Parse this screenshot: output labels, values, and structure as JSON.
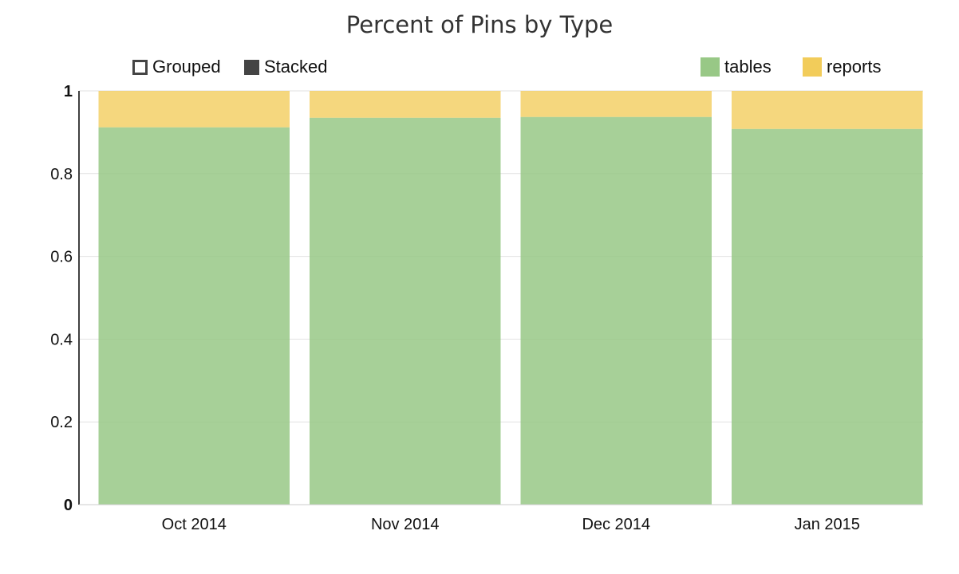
{
  "chart_data": {
    "type": "bar",
    "stacked": true,
    "title": "Percent of Pins by Type",
    "categories": [
      "Oct 2014",
      "Nov 2014",
      "Dec 2014",
      "Jan 2015"
    ],
    "series": [
      {
        "name": "tables",
        "color": "#98c886",
        "values": [
          0.912,
          0.935,
          0.937,
          0.908
        ]
      },
      {
        "name": "reports",
        "color": "#f2cc5a",
        "values": [
          0.088,
          0.065,
          0.063,
          0.092
        ]
      }
    ],
    "ylim": [
      0,
      1
    ],
    "yticks": [
      "0",
      "0.2",
      "0.4",
      "0.6",
      "0.8",
      "1"
    ],
    "grid": true,
    "legend_position": "top-right",
    "xlabel": "",
    "ylabel": ""
  },
  "controls": {
    "grouped_label": "Grouped",
    "stacked_label": "Stacked",
    "selected": "Stacked"
  }
}
